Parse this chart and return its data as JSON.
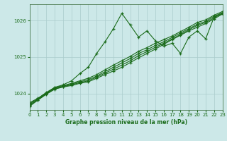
{
  "title": "Graphe pression niveau de la mer (hPa)",
  "bg_color": "#cce8e8",
  "grid_color": "#aacccc",
  "line_color": "#1a6b1a",
  "x_min": 0,
  "x_max": 23,
  "y_min": 1023.55,
  "y_max": 1026.45,
  "y_ticks": [
    1024,
    1025,
    1026
  ],
  "x_ticks": [
    0,
    1,
    2,
    3,
    4,
    5,
    6,
    7,
    8,
    9,
    10,
    11,
    12,
    13,
    14,
    15,
    16,
    17,
    18,
    19,
    20,
    21,
    22,
    23
  ],
  "series": [
    {
      "points": [
        [
          0,
          1023.65
        ],
        [
          1,
          1023.82
        ],
        [
          2,
          1023.98
        ],
        [
          3,
          1024.12
        ],
        [
          4,
          1024.18
        ],
        [
          5,
          1024.22
        ],
        [
          6,
          1024.28
        ],
        [
          7,
          1024.32
        ],
        [
          8,
          1024.42
        ],
        [
          9,
          1024.52
        ],
        [
          10,
          1024.62
        ],
        [
          11,
          1024.72
        ],
        [
          12,
          1024.85
        ],
        [
          13,
          1024.98
        ],
        [
          14,
          1025.1
        ],
        [
          15,
          1025.22
        ],
        [
          16,
          1025.35
        ],
        [
          17,
          1025.48
        ],
        [
          18,
          1025.6
        ],
        [
          19,
          1025.72
        ],
        [
          20,
          1025.82
        ],
        [
          21,
          1025.92
        ],
        [
          22,
          1026.05
        ],
        [
          23,
          1026.18
        ]
      ],
      "marker": true
    },
    {
      "points": [
        [
          0,
          1023.67
        ],
        [
          1,
          1023.83
        ],
        [
          2,
          1023.99
        ],
        [
          3,
          1024.13
        ],
        [
          4,
          1024.19
        ],
        [
          5,
          1024.24
        ],
        [
          6,
          1024.3
        ],
        [
          7,
          1024.35
        ],
        [
          8,
          1024.45
        ],
        [
          9,
          1024.56
        ],
        [
          10,
          1024.67
        ],
        [
          11,
          1024.78
        ],
        [
          12,
          1024.9
        ],
        [
          13,
          1025.04
        ],
        [
          14,
          1025.15
        ],
        [
          15,
          1025.27
        ],
        [
          16,
          1025.38
        ],
        [
          17,
          1025.5
        ],
        [
          18,
          1025.62
        ],
        [
          19,
          1025.75
        ],
        [
          20,
          1025.87
        ],
        [
          21,
          1025.95
        ],
        [
          22,
          1026.08
        ],
        [
          23,
          1026.2
        ]
      ],
      "marker": true
    },
    {
      "points": [
        [
          0,
          1023.69
        ],
        [
          1,
          1023.85
        ],
        [
          2,
          1024.0
        ],
        [
          3,
          1024.15
        ],
        [
          4,
          1024.2
        ],
        [
          5,
          1024.26
        ],
        [
          6,
          1024.32
        ],
        [
          7,
          1024.38
        ],
        [
          8,
          1024.48
        ],
        [
          9,
          1024.6
        ],
        [
          10,
          1024.72
        ],
        [
          11,
          1024.84
        ],
        [
          12,
          1024.96
        ],
        [
          13,
          1025.1
        ],
        [
          14,
          1025.2
        ],
        [
          15,
          1025.32
        ],
        [
          16,
          1025.42
        ],
        [
          17,
          1025.54
        ],
        [
          18,
          1025.66
        ],
        [
          19,
          1025.78
        ],
        [
          20,
          1025.9
        ],
        [
          21,
          1025.98
        ],
        [
          22,
          1026.12
        ],
        [
          23,
          1026.22
        ]
      ],
      "marker": true
    },
    {
      "points": [
        [
          0,
          1023.72
        ],
        [
          1,
          1023.86
        ],
        [
          2,
          1024.02
        ],
        [
          3,
          1024.16
        ],
        [
          4,
          1024.22
        ],
        [
          5,
          1024.28
        ],
        [
          6,
          1024.35
        ],
        [
          7,
          1024.42
        ],
        [
          8,
          1024.52
        ],
        [
          9,
          1024.65
        ],
        [
          10,
          1024.78
        ],
        [
          11,
          1024.9
        ],
        [
          12,
          1025.02
        ],
        [
          13,
          1025.16
        ],
        [
          14,
          1025.26
        ],
        [
          15,
          1025.38
        ],
        [
          16,
          1025.48
        ],
        [
          17,
          1025.58
        ],
        [
          18,
          1025.7
        ],
        [
          19,
          1025.82
        ],
        [
          20,
          1025.95
        ],
        [
          21,
          1026.02
        ],
        [
          22,
          1026.15
        ],
        [
          23,
          1026.25
        ]
      ],
      "marker": true
    },
    {
      "points": [
        [
          0,
          1023.75
        ],
        [
          1,
          1023.87
        ],
        [
          2,
          1024.03
        ],
        [
          3,
          1024.17
        ],
        [
          4,
          1024.24
        ],
        [
          5,
          1024.35
        ],
        [
          6,
          1024.55
        ],
        [
          7,
          1024.72
        ],
        [
          8,
          1025.1
        ],
        [
          9,
          1025.42
        ],
        [
          10,
          1025.78
        ],
        [
          11,
          1026.2
        ],
        [
          12,
          1025.88
        ],
        [
          13,
          1025.55
        ],
        [
          14,
          1025.72
        ],
        [
          15,
          1025.45
        ],
        [
          16,
          1025.3
        ],
        [
          17,
          1025.38
        ],
        [
          18,
          1025.1
        ],
        [
          19,
          1025.55
        ],
        [
          20,
          1025.72
        ],
        [
          21,
          1025.5
        ],
        [
          22,
          1026.1
        ],
        [
          23,
          1026.2
        ]
      ],
      "marker": true
    }
  ]
}
